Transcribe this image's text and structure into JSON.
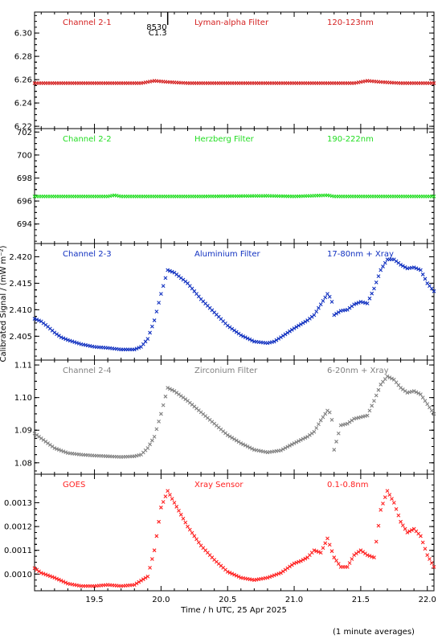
{
  "chart_data": {
    "type": "scatter",
    "xlabel": "Time / h UTC, 25 Apr 2025",
    "ylabel": "Calibrated Signal / (mW m⁻²)",
    "xlim": [
      19.05,
      22.05
    ],
    "x_ticks": [
      19.5,
      20.0,
      20.5,
      21.0,
      21.5,
      22.0
    ],
    "x_tick_labels": [
      "19.5",
      "20.0",
      "20.5",
      "21.0",
      "21.5",
      "22.0"
    ],
    "footnote": "(1 minute averages)",
    "panels": [
      {
        "channel": "Channel 2-1",
        "filter": "Lyman-alpha Filter",
        "band": "120-123nm",
        "color": "#d42020",
        "ylim": [
          6.218,
          6.318
        ],
        "y_ticks": [
          6.22,
          6.24,
          6.26,
          6.28,
          6.3
        ],
        "y_tick_labels": [
          "6.22",
          "6.24",
          "6.26",
          "6.28",
          "6.30"
        ],
        "flare_marker": {
          "x": 20.05,
          "labels": [
            "8530",
            "C1.3"
          ]
        },
        "points": [
          [
            19.05,
            6.257
          ],
          [
            19.5,
            6.257
          ],
          [
            19.85,
            6.257
          ],
          [
            19.95,
            6.259
          ],
          [
            20.05,
            6.258
          ],
          [
            20.2,
            6.257
          ],
          [
            21.0,
            6.257
          ],
          [
            21.45,
            6.257
          ],
          [
            21.55,
            6.259
          ],
          [
            21.65,
            6.258
          ],
          [
            21.8,
            6.257
          ],
          [
            22.05,
            6.257
          ]
        ]
      },
      {
        "channel": "Channel 2-2",
        "filter": "Herzberg Filter",
        "band": "190-222nm",
        "color": "#22dd22",
        "ylim": [
          692.3,
          702.3
        ],
        "y_ticks": [
          694,
          696,
          698,
          700,
          702
        ],
        "y_tick_labels": [
          "694",
          "696",
          "698",
          "700",
          "702"
        ],
        "points": [
          [
            19.05,
            696.4
          ],
          [
            19.6,
            696.4
          ],
          [
            19.65,
            696.5
          ],
          [
            19.7,
            696.4
          ],
          [
            20.3,
            696.4
          ],
          [
            20.8,
            696.45
          ],
          [
            21.0,
            696.4
          ],
          [
            21.25,
            696.5
          ],
          [
            21.3,
            696.4
          ],
          [
            22.05,
            696.4
          ]
        ]
      },
      {
        "channel": "Channel 2-3",
        "filter": "Aluminium Filter",
        "band": "17-80nm + Xray",
        "color": "#1030c0",
        "ylim": [
          2.4005,
          2.4225
        ],
        "y_ticks": [
          2.405,
          2.41,
          2.415,
          2.42
        ],
        "y_tick_labels": [
          "2.405",
          "2.410",
          "2.415",
          "2.420"
        ],
        "points": [
          [
            19.05,
            2.4083
          ],
          [
            19.1,
            2.4078
          ],
          [
            19.15,
            2.4068
          ],
          [
            19.2,
            2.4057
          ],
          [
            19.25,
            2.4048
          ],
          [
            19.3,
            2.4043
          ],
          [
            19.4,
            2.4035
          ],
          [
            19.5,
            2.403
          ],
          [
            19.6,
            2.4028
          ],
          [
            19.7,
            2.4025
          ],
          [
            19.8,
            2.4025
          ],
          [
            19.85,
            2.403
          ],
          [
            19.9,
            2.4045
          ],
          [
            19.95,
            2.408
          ],
          [
            20.0,
            2.413
          ],
          [
            20.05,
            2.4175
          ],
          [
            20.1,
            2.417
          ],
          [
            20.2,
            2.415
          ],
          [
            20.3,
            2.412
          ],
          [
            20.4,
            2.4095
          ],
          [
            20.5,
            2.407
          ],
          [
            20.6,
            2.4052
          ],
          [
            20.7,
            2.404
          ],
          [
            20.8,
            2.4037
          ],
          [
            20.85,
            2.404
          ],
          [
            20.9,
            2.4048
          ],
          [
            21.0,
            2.4065
          ],
          [
            21.1,
            2.408
          ],
          [
            21.15,
            2.409
          ],
          [
            21.2,
            2.411
          ],
          [
            21.25,
            2.413
          ],
          [
            21.28,
            2.412
          ],
          [
            21.3,
            2.409
          ],
          [
            21.35,
            2.4098
          ],
          [
            21.4,
            2.41
          ],
          [
            21.45,
            2.411
          ],
          [
            21.5,
            2.4115
          ],
          [
            21.55,
            2.4112
          ],
          [
            21.6,
            2.414
          ],
          [
            21.65,
            2.4175
          ],
          [
            21.7,
            2.4195
          ],
          [
            21.75,
            2.4195
          ],
          [
            21.8,
            2.4185
          ],
          [
            21.85,
            2.4178
          ],
          [
            21.9,
            2.418
          ],
          [
            21.95,
            2.4175
          ],
          [
            22.0,
            2.415
          ],
          [
            22.05,
            2.4135
          ]
        ]
      },
      {
        "channel": "Channel 2-4",
        "filter": "Zirconium Filter",
        "band": "6-20nm + Xray",
        "color": "#808080",
        "ylim": [
          1.0765,
          1.1115
        ],
        "y_ticks": [
          1.08,
          1.09,
          1.1,
          1.11
        ],
        "y_tick_labels": [
          "1.08",
          "1.09",
          "1.10",
          "1.11"
        ],
        "points": [
          [
            19.05,
            1.089
          ],
          [
            19.1,
            1.0875
          ],
          [
            19.15,
            1.086
          ],
          [
            19.2,
            1.0845
          ],
          [
            19.3,
            1.083
          ],
          [
            19.4,
            1.0825
          ],
          [
            19.5,
            1.0822
          ],
          [
            19.6,
            1.082
          ],
          [
            19.7,
            1.0818
          ],
          [
            19.8,
            1.082
          ],
          [
            19.85,
            1.0825
          ],
          [
            19.9,
            1.0845
          ],
          [
            19.95,
            1.088
          ],
          [
            20.0,
            1.095
          ],
          [
            20.05,
            1.103
          ],
          [
            20.1,
            1.102
          ],
          [
            20.2,
            1.099
          ],
          [
            20.3,
            1.0955
          ],
          [
            20.4,
            1.092
          ],
          [
            20.5,
            1.0885
          ],
          [
            20.6,
            1.086
          ],
          [
            20.7,
            1.084
          ],
          [
            20.8,
            1.0832
          ],
          [
            20.9,
            1.0838
          ],
          [
            21.0,
            1.086
          ],
          [
            21.1,
            1.088
          ],
          [
            21.15,
            1.0895
          ],
          [
            21.2,
            1.093
          ],
          [
            21.25,
            1.096
          ],
          [
            21.28,
            1.095
          ],
          [
            21.3,
            1.084
          ],
          [
            21.35,
            1.0915
          ],
          [
            21.4,
            1.092
          ],
          [
            21.45,
            1.0935
          ],
          [
            21.5,
            1.094
          ],
          [
            21.55,
            1.0945
          ],
          [
            21.6,
            1.099
          ],
          [
            21.65,
            1.104
          ],
          [
            21.7,
            1.1065
          ],
          [
            21.75,
            1.1055
          ],
          [
            21.8,
            1.103
          ],
          [
            21.85,
            1.1015
          ],
          [
            21.9,
            1.102
          ],
          [
            21.95,
            1.101
          ],
          [
            22.0,
            1.098
          ],
          [
            22.05,
            1.095
          ]
        ]
      },
      {
        "channel": "GOES",
        "filter": "Xray Sensor",
        "band": "0.1-0.8nm",
        "color": "#ff2020",
        "ylim": [
          0.00093,
          0.00142
        ],
        "y_ticks": [
          0.001,
          0.0011,
          0.0012,
          0.0013
        ],
        "y_tick_labels": [
          "0.0010",
          "0.0011",
          "0.0012",
          "0.0013"
        ],
        "points": [
          [
            19.05,
            0.001025
          ],
          [
            19.1,
            0.001005
          ],
          [
            19.2,
            0.000985
          ],
          [
            19.3,
            0.00096
          ],
          [
            19.4,
            0.00095
          ],
          [
            19.5,
            0.00095
          ],
          [
            19.6,
            0.000955
          ],
          [
            19.7,
            0.00095
          ],
          [
            19.8,
            0.000955
          ],
          [
            19.9,
            0.00099
          ],
          [
            19.95,
            0.0011
          ],
          [
            20.0,
            0.00128
          ],
          [
            20.05,
            0.00135
          ],
          [
            20.1,
            0.0013
          ],
          [
            20.2,
            0.0012
          ],
          [
            20.3,
            0.00112
          ],
          [
            20.4,
            0.00106
          ],
          [
            20.5,
            0.00101
          ],
          [
            20.6,
            0.000985
          ],
          [
            20.7,
            0.000975
          ],
          [
            20.8,
            0.000985
          ],
          [
            20.9,
            0.001005
          ],
          [
            21.0,
            0.001045
          ],
          [
            21.05,
            0.001055
          ],
          [
            21.1,
            0.00107
          ],
          [
            21.15,
            0.0011
          ],
          [
            21.2,
            0.00109
          ],
          [
            21.25,
            0.00115
          ],
          [
            21.3,
            0.00107
          ],
          [
            21.35,
            0.00103
          ],
          [
            21.4,
            0.00103
          ],
          [
            21.45,
            0.00108
          ],
          [
            21.5,
            0.0011
          ],
          [
            21.55,
            0.00108
          ],
          [
            21.6,
            0.00107
          ],
          [
            21.65,
            0.00127
          ],
          [
            21.7,
            0.00135
          ],
          [
            21.75,
            0.0013
          ],
          [
            21.8,
            0.00122
          ],
          [
            21.85,
            0.001175
          ],
          [
            21.9,
            0.00119
          ],
          [
            21.95,
            0.00116
          ],
          [
            22.0,
            0.00108
          ],
          [
            22.05,
            0.00103
          ]
        ]
      }
    ]
  }
}
